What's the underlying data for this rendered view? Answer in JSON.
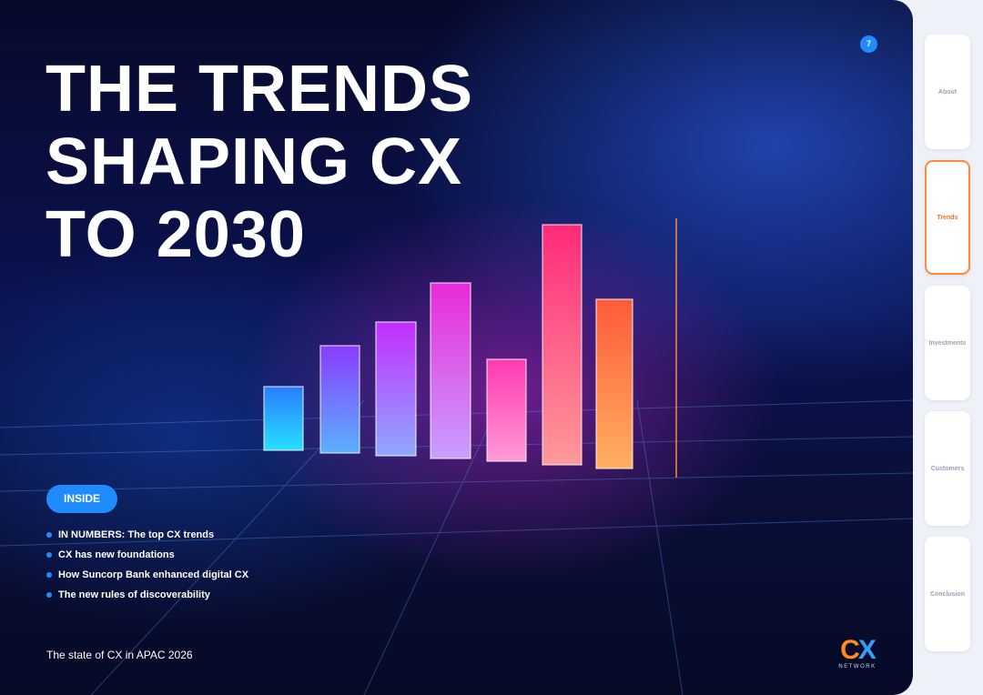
{
  "title_lines": [
    "THE TRENDS",
    "SHAPING CX",
    "TO 2030"
  ],
  "page_number": "7",
  "inside_label": "INSIDE",
  "inside_items": [
    "IN NUMBERS: The top CX trends",
    "CX has new foundations",
    "How Suncorp Bank enhanced digital CX",
    "The new rules of discoverability"
  ],
  "footer": "The state of CX in APAC 2026",
  "logo": {
    "letters": "C",
    "accent": "X",
    "subtitle": "NETWORK"
  },
  "tabs": [
    {
      "label": "About"
    },
    {
      "label": "Trends",
      "active": true
    },
    {
      "label": "Investments"
    },
    {
      "label": "Customers"
    },
    {
      "label": "Conclusion"
    }
  ]
}
